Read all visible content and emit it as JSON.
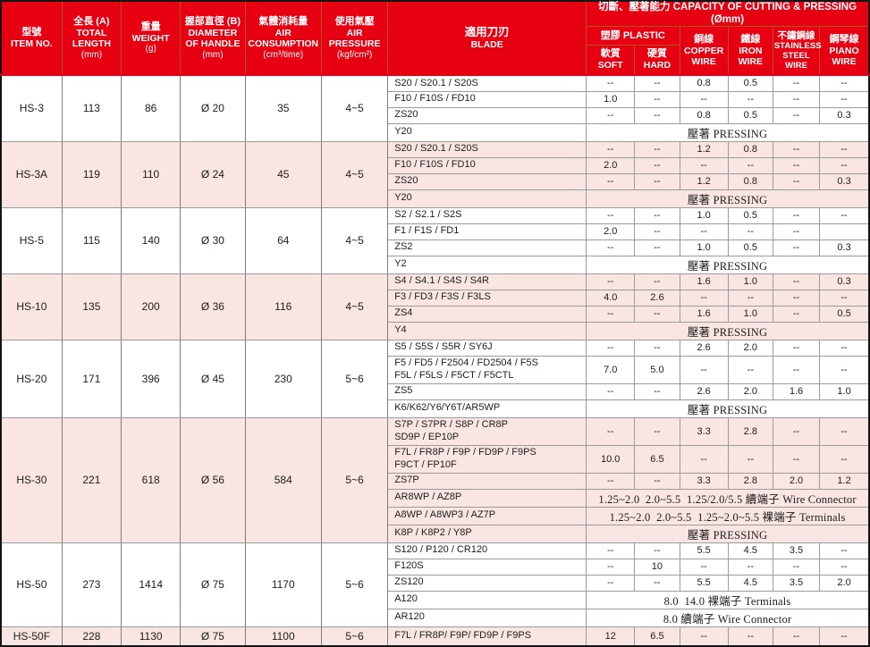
{
  "colors": {
    "header_red": "#e60012",
    "header_divider": "#b5531c",
    "row_tint_pink": "#f9e6e2",
    "grid_gray": "#9b9b9b",
    "outer_border": "#141414"
  },
  "header": {
    "item": {
      "zh": "型號",
      "en": "ITEM NO."
    },
    "length": {
      "zh": "全長 (A)",
      "en": "TOTAL LENGTH",
      "unit": "(mm)"
    },
    "weight": {
      "zh": "重量",
      "en": "WEIGHT",
      "unit": "(g)"
    },
    "diameter": {
      "zh": "握部直徑 (B)",
      "en": "DIAMETER OF HANDLE",
      "unit": "(mm)"
    },
    "air": {
      "zh": "氣體消耗量",
      "en": "AIR CONSUMPTION",
      "unit": "(cm³/time)"
    },
    "pressure": {
      "zh": "使用氣壓",
      "en": "AIR PRESSURE",
      "unit": "(kgf/cm²)"
    },
    "blade": {
      "zh": "適用刀刃",
      "en": "BLADE"
    },
    "capacity_title": "切斷、壓著能力 CAPACITY OF CUTTING & PRESSING (Ømm)",
    "plastic": {
      "zh": "塑膠",
      "en": "PLASTIC"
    },
    "soft": {
      "zh": "軟質",
      "en": "SOFT"
    },
    "hard": {
      "zh": "硬質",
      "en": "HARD"
    },
    "copper": {
      "zh": "銅線",
      "en": "COPPER WIRE"
    },
    "iron": {
      "zh": "鐵線",
      "en": "IRON WIRE"
    },
    "stainless": {
      "zh": "不鏽鋼線",
      "en": "STAINLESS STEEL WIRE"
    },
    "piano": {
      "zh": "鋼琴線",
      "en": "PIANO WIRE"
    }
  },
  "models": [
    {
      "item": "HS-3",
      "length": "113",
      "weight": "86",
      "diameter": "Ø 20",
      "air": "35",
      "pressure": "4~5",
      "tint": false,
      "rows": [
        {
          "blade": "S20 / S20.1 / S20S",
          "cells": [
            "--",
            "--",
            "0.8",
            "0.5",
            "--",
            "--"
          ]
        },
        {
          "blade": "F10 / F10S / FD10",
          "cells": [
            "1.0",
            "--",
            "--",
            "--",
            "--",
            "--"
          ]
        },
        {
          "blade": "ZS20",
          "cells": [
            "--",
            "--",
            "0.8",
            "0.5",
            "--",
            "0.3"
          ]
        },
        {
          "blade": "Y20",
          "span": "壓著 PRESSING"
        }
      ]
    },
    {
      "item": "HS-3A",
      "length": "119",
      "weight": "110",
      "diameter": "Ø 24",
      "air": "45",
      "pressure": "4~5",
      "tint": true,
      "rows": [
        {
          "blade": "S20 / S20.1 / S20S",
          "cells": [
            "--",
            "--",
            "1.2",
            "0.8",
            "--",
            "--"
          ]
        },
        {
          "blade": "F10 / F10S / FD10",
          "cells": [
            "2.0",
            "--",
            "--",
            "--",
            "--",
            "--"
          ]
        },
        {
          "blade": "ZS20",
          "cells": [
            "--",
            "--",
            "1.2",
            "0.8",
            "--",
            "0.3"
          ]
        },
        {
          "blade": "Y20",
          "span": "壓著 PRESSING"
        }
      ]
    },
    {
      "item": "HS-5",
      "length": "115",
      "weight": "140",
      "diameter": "Ø 30",
      "air": "64",
      "pressure": "4~5",
      "tint": false,
      "rows": [
        {
          "blade": "S2 / S2.1 / S2S",
          "cells": [
            "--",
            "--",
            "1.0",
            "0.5",
            "--",
            "--"
          ]
        },
        {
          "blade": "F1 / F1S / FD1",
          "cells": [
            "2.0",
            "--",
            "--",
            "--",
            "--",
            ""
          ]
        },
        {
          "blade": "ZS2",
          "cells": [
            "--",
            "--",
            "1.0",
            "0.5",
            "--",
            "0.3"
          ]
        },
        {
          "blade": "Y2",
          "span": "壓著 PRESSING"
        }
      ]
    },
    {
      "item": "HS-10",
      "length": "135",
      "weight": "200",
      "diameter": "Ø 36",
      "air": "116",
      "pressure": "4~5",
      "tint": true,
      "rows": [
        {
          "blade": "S4 / S4.1 / S4S / S4R",
          "cells": [
            "--",
            "--",
            "1.6",
            "1.0",
            "--",
            "0.3"
          ]
        },
        {
          "blade": "F3 / FD3 / F3S / F3LS",
          "cells": [
            "4.0",
            "2.6",
            "--",
            "--",
            "--",
            "--"
          ]
        },
        {
          "blade": "ZS4",
          "cells": [
            "--",
            "--",
            "1.6",
            "1.0",
            "--",
            "0.5"
          ]
        },
        {
          "blade": "Y4",
          "span": "壓著 PRESSING"
        }
      ]
    },
    {
      "item": "HS-20",
      "length": "171",
      "weight": "396",
      "diameter": "Ø 45",
      "air": "230",
      "pressure": "5~6",
      "tint": false,
      "rows": [
        {
          "blade": "S5 / S5S / S5R / SY6J",
          "cells": [
            "--",
            "--",
            "2.6",
            "2.0",
            "--",
            "--"
          ]
        },
        {
          "blade": "F5 / FD5 / F2504 / FD2504 / F5S\nF5L / F5LS / F5CT / F5CTL",
          "cells": [
            "7.0",
            "5.0",
            "--",
            "--",
            "--",
            "--"
          ]
        },
        {
          "blade": "ZS5",
          "cells": [
            "--",
            "--",
            "2.6",
            "2.0",
            "1.6",
            "1.0"
          ]
        },
        {
          "blade": "K6/K62/Y6/Y6T/AR5WP",
          "span": "壓著 PRESSING"
        }
      ]
    },
    {
      "item": "HS-30",
      "length": "221",
      "weight": "618",
      "diameter": "Ø 56",
      "air": "584",
      "pressure": "5~6",
      "tint": true,
      "rows": [
        {
          "blade": "S7P / S7PR / S8P / CR8P\nSD9P / EP10P",
          "cells": [
            "--",
            "--",
            "3.3",
            "2.8",
            "--",
            "--"
          ]
        },
        {
          "blade": "F7L / FR8P / F9P / FD9P / F9PS\nF9CT / FP10F",
          "cells": [
            "10.0",
            "6.5",
            "--",
            "--",
            "--",
            "--"
          ]
        },
        {
          "blade": "ZS7P",
          "cells": [
            "--",
            "--",
            "3.3",
            "2.8",
            "2.0",
            "1.2"
          ]
        },
        {
          "blade": "AR8WP / AZ8P",
          "span": "1.25~2.0  2.0~5.5  1.25/2.0/5.5 續端子 Wire Connector"
        },
        {
          "blade": "A8WP / A8WP3 / AZ7P",
          "span": "1.25~2.0  2.0~5.5  1.25~2.0~5.5 裸端子 Terminals"
        },
        {
          "blade": "K8P / K8P2 / Y8P",
          "span": "壓著 PRESSING"
        }
      ]
    },
    {
      "item": "HS-50",
      "length": "273",
      "weight": "1414",
      "diameter": "Ø 75",
      "air": "1170",
      "pressure": "5~6",
      "tint": false,
      "rows": [
        {
          "blade": "S120 / P120 / CR120",
          "cells": [
            "--",
            "--",
            "5.5",
            "4.5",
            "3.5",
            "--"
          ]
        },
        {
          "blade": "F120S",
          "cells": [
            "--",
            "10",
            "--",
            "--",
            "--",
            "--"
          ]
        },
        {
          "blade": "ZS120",
          "cells": [
            "--",
            "--",
            "5.5",
            "4.5",
            "3.5",
            "2.0"
          ]
        },
        {
          "blade": "A120",
          "span": "8.0  14.0 裸端子 Terminals"
        },
        {
          "blade": "AR120",
          "span": "8.0 續端子 Wire Connector"
        }
      ]
    },
    {
      "item": "HS-50F",
      "length": "228",
      "weight": "1130",
      "diameter": "Ø 75",
      "air": "1100",
      "pressure": "5~6",
      "tint": true,
      "rows": [
        {
          "blade": "F7L / FR8P/ F9P/ FD9P / F9PS",
          "cells": [
            "12",
            "6.5",
            "--",
            "--",
            "--",
            "--"
          ]
        }
      ]
    }
  ]
}
